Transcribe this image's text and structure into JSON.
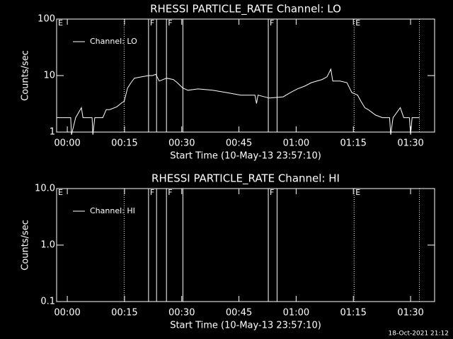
{
  "charts": [
    {
      "type": "line",
      "title": "RHESSI PARTICLE_RATE Channel: LO",
      "xlabel": "Start Time (10-May-13 23:57:10)",
      "ylabel": "Counts/sec",
      "log_y": true,
      "ylim": [
        1,
        100
      ],
      "yticks": [
        1,
        10,
        100
      ],
      "xlim": [
        -2.8,
        96.3
      ],
      "xticks": [
        {
          "value": 0,
          "label": "00:00"
        },
        {
          "value": 15,
          "label": "00:15"
        },
        {
          "value": 30,
          "label": "00:30"
        },
        {
          "value": 45,
          "label": "00:45"
        },
        {
          "value": 60,
          "label": "01:00"
        },
        {
          "value": 75,
          "label": "01:15"
        },
        {
          "value": 90,
          "label": "01:30"
        }
      ],
      "markers": [
        {
          "x": 14.9,
          "style": "dotted"
        },
        {
          "x": 21.3,
          "style": "solid"
        },
        {
          "x": 23.4,
          "style": "solid"
        },
        {
          "x": 26.0,
          "style": "solid"
        },
        {
          "x": 30.3,
          "style": "solid"
        },
        {
          "x": 52.7,
          "style": "solid"
        },
        {
          "x": 55.0,
          "style": "solid"
        },
        {
          "x": 75.2,
          "style": "dotted"
        },
        {
          "x": 92.3,
          "style": "dotted"
        }
      ],
      "annotations": [
        {
          "x": -2.8,
          "text": "E"
        },
        {
          "x": 21.3,
          "text": "F"
        },
        {
          "x": 26.0,
          "text": "F"
        },
        {
          "x": 52.7,
          "text": "F"
        },
        {
          "x": 75.2,
          "text": "E"
        }
      ],
      "series": [
        {
          "name": "Channel: LO",
          "color": "#ffffff",
          "x": [
            -2.8,
            0.9,
            1.1,
            2.2,
            3.7,
            4.1,
            6.5,
            6.7,
            7.2,
            9.3,
            10.2,
            11.1,
            13.0,
            14.3,
            14.9,
            15.8,
            16.7,
            17.6,
            19.5,
            21.3,
            22.3,
            23.2,
            24.1,
            26.0,
            27.8,
            28.8,
            30.3,
            31.6,
            34.3,
            38.1,
            41.8,
            45.5,
            49.2,
            49.6,
            50.0,
            52.9,
            56.6,
            58.5,
            60.3,
            62.2,
            64.0,
            66.8,
            68.1,
            69.1,
            69.6,
            71.5,
            73.3,
            74.6,
            76.1,
            77.0,
            78.0,
            78.9,
            80.8,
            82.6,
            84.5,
            84.8,
            85.4,
            87.3,
            88.2,
            89.7,
            90.0,
            90.4,
            92.3
          ],
          "values": [
            1.8,
            1.8,
            0.9,
            1.8,
            2.7,
            1.8,
            1.8,
            0.9,
            1.8,
            1.8,
            2.5,
            2.5,
            2.8,
            3.3,
            3.5,
            6,
            7.5,
            9,
            9.5,
            10,
            10,
            10.5,
            8,
            9,
            8.5,
            7.5,
            6,
            5.5,
            5.8,
            5.5,
            5,
            4.5,
            4.5,
            3.2,
            4.5,
            4,
            4.2,
            5,
            5.8,
            6.5,
            7.5,
            8.5,
            9.5,
            13,
            8,
            8,
            7.5,
            5,
            4.5,
            3.5,
            2.7,
            2.5,
            2,
            1.8,
            1.8,
            0.9,
            1.8,
            2.7,
            1.8,
            1.8,
            0.9,
            1.8,
            1.8
          ]
        }
      ]
    },
    {
      "type": "line",
      "title": "RHESSI PARTICLE_RATE Channel: HI",
      "xlabel": "Start Time (10-May-13 23:57:10)",
      "ylabel": "Counts/sec",
      "log_y": true,
      "ylim": [
        0.1,
        10
      ],
      "yticks": [
        {
          "value": 0.1,
          "label": "0.1"
        },
        {
          "value": 1,
          "label": "1.0"
        },
        {
          "value": 10,
          "label": "10.0"
        }
      ],
      "xlim": [
        -2.8,
        96.3
      ],
      "xticks": [
        {
          "value": 0,
          "label": "00:00"
        },
        {
          "value": 15,
          "label": "00:15"
        },
        {
          "value": 30,
          "label": "00:30"
        },
        {
          "value": 45,
          "label": "00:45"
        },
        {
          "value": 60,
          "label": "01:00"
        },
        {
          "value": 75,
          "label": "01:15"
        },
        {
          "value": 90,
          "label": "01:30"
        }
      ],
      "markers": [
        {
          "x": 14.9,
          "style": "dotted"
        },
        {
          "x": 21.3,
          "style": "solid"
        },
        {
          "x": 23.4,
          "style": "solid"
        },
        {
          "x": 26.0,
          "style": "solid"
        },
        {
          "x": 30.3,
          "style": "solid"
        },
        {
          "x": 52.7,
          "style": "solid"
        },
        {
          "x": 55.0,
          "style": "solid"
        },
        {
          "x": 75.2,
          "style": "dotted"
        },
        {
          "x": 92.3,
          "style": "dotted"
        }
      ],
      "annotations": [
        {
          "x": -2.8,
          "text": "E"
        },
        {
          "x": 21.3,
          "text": "F"
        },
        {
          "x": 26.0,
          "text": "F"
        },
        {
          "x": 52.7,
          "text": "F"
        },
        {
          "x": 75.2,
          "text": "E"
        }
      ],
      "series": [
        {
          "name": "Channel: HI",
          "color": "#ffffff",
          "x": [],
          "values": []
        }
      ]
    }
  ],
  "footer": "18-Oct-2021 21:12"
}
